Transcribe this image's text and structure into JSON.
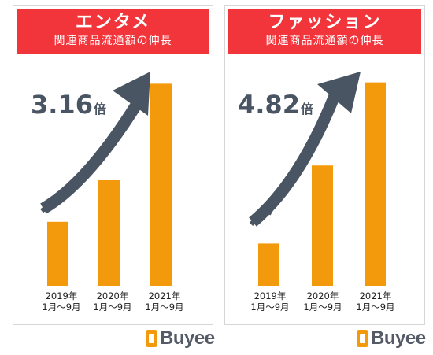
{
  "chart_data": [
    {
      "type": "bar",
      "title": "エンタメ",
      "subtitle": "関連商品流通額の伸長",
      "annotation": "3.16倍",
      "categories": [
        [
          "2019年",
          "1月〜9月"
        ],
        [
          "2020年",
          "1月〜9月"
        ],
        [
          "2021年",
          "1月〜9月"
        ]
      ],
      "values": [
        1.0,
        1.65,
        3.16
      ],
      "ylim": [
        0,
        3.3
      ],
      "bar_color": "#f39a0c",
      "arrow_color": "#4a5563",
      "banner_color": "#f2353b"
    },
    {
      "type": "bar",
      "title": "ファッション",
      "subtitle": "関連商品流通額の伸長",
      "annotation": "4.82倍",
      "categories": [
        [
          "2019年",
          "1月〜9月"
        ],
        [
          "2020年",
          "1月〜9月"
        ],
        [
          "2021年",
          "1月〜9月"
        ]
      ],
      "values": [
        1.0,
        2.85,
        4.82
      ],
      "ylim": [
        0,
        5.0
      ],
      "bar_color": "#f39a0c",
      "arrow_color": "#4a5563",
      "banner_color": "#f2353b"
    }
  ],
  "brand": {
    "name": "Buyee",
    "color": "#f39a0c",
    "text_color": "#555b66"
  }
}
